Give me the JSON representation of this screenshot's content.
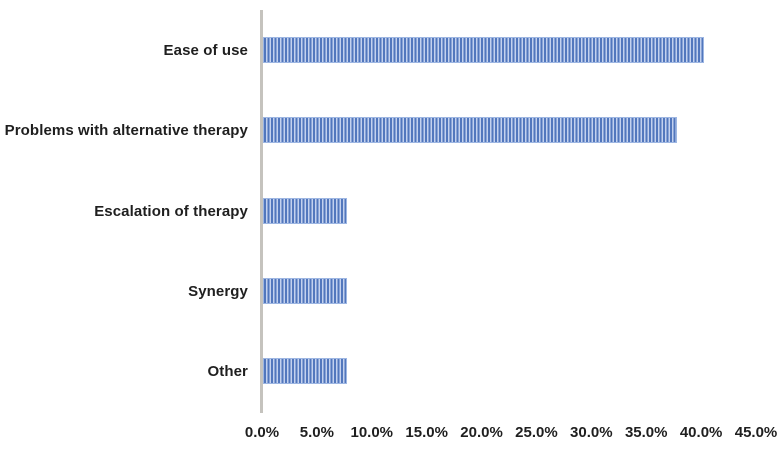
{
  "chart_data": {
    "type": "bar",
    "orientation": "horizontal",
    "title": "",
    "xlabel": "",
    "ylabel": "",
    "categories": [
      "Ease of use",
      "Problems with alternative therapy",
      "Escalation of therapy",
      "Synergy",
      "Other"
    ],
    "values": [
      40.0,
      37.5,
      7.5,
      7.5,
      7.5
    ],
    "value_unit": "%",
    "xlim": [
      0,
      45
    ],
    "xticks": [
      "0.0%",
      "5.0%",
      "10.0%",
      "15.0%",
      "20.0%",
      "25.0%",
      "30.0%",
      "35.0%",
      "40.0%",
      "45.0%"
    ],
    "grid": false,
    "legend": false,
    "bar_pattern": "vertical-stripes"
  },
  "colors": {
    "bar_stripe_dark": "#5277bd",
    "bar_stripe_light": "#c3d1ee",
    "bar_border": "#9db6e2",
    "axis_line": "#c5c3be",
    "text": "#1f1f1f"
  }
}
